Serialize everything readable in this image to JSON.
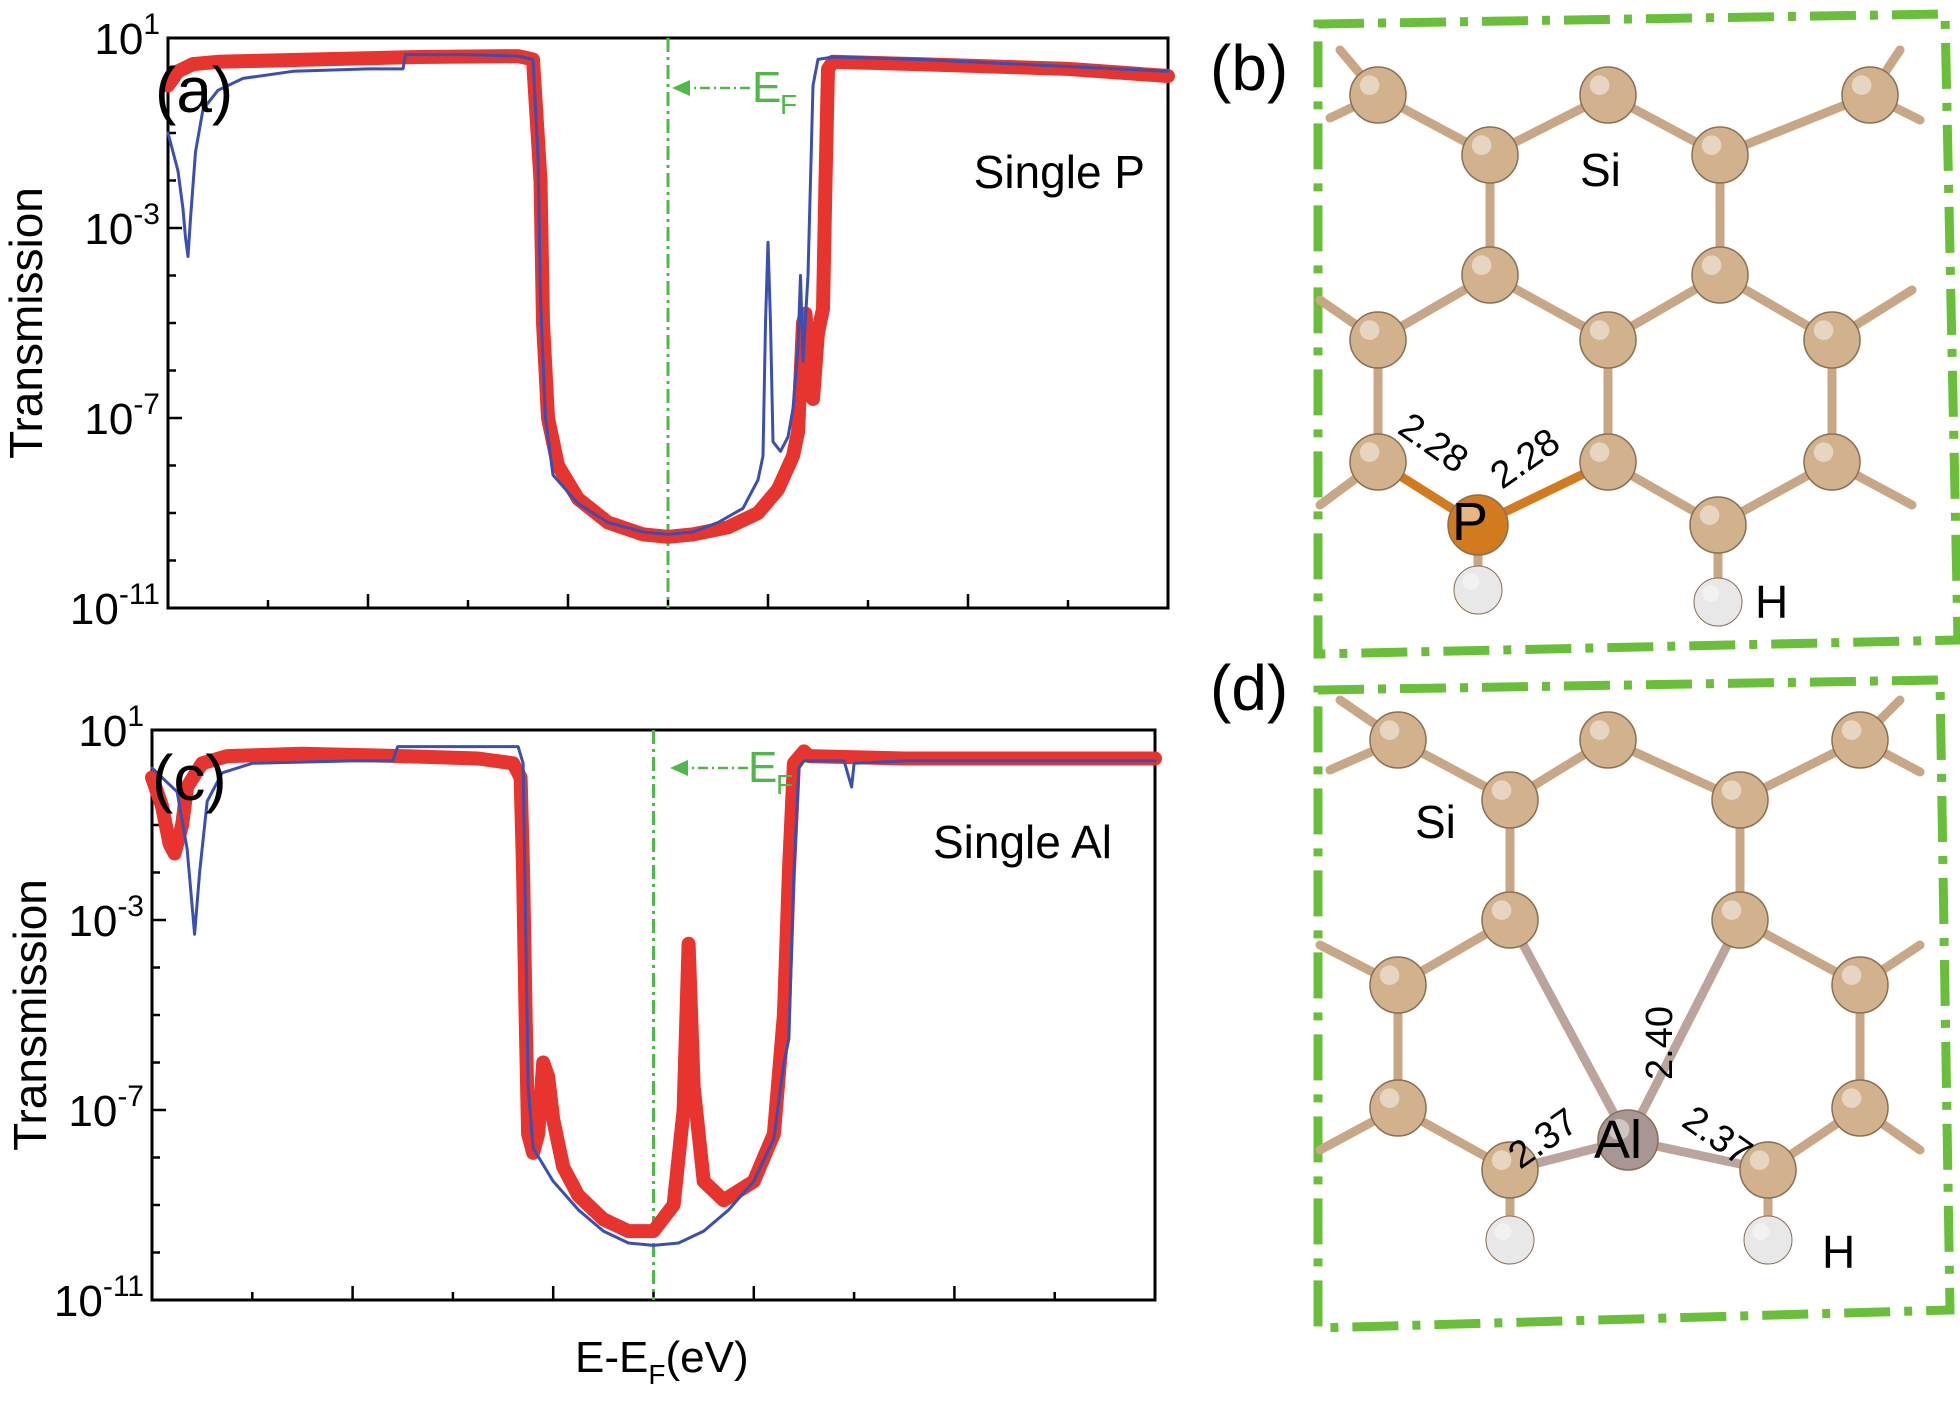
{
  "chart_data": [
    {
      "panel_label": "(a)",
      "type": "line",
      "annotation": "Single P",
      "ef_label": "E",
      "ef_sub": "F",
      "ylabel": "Transmission",
      "xlabel": "",
      "yscale": "log",
      "ylim_exp": [
        -11,
        1
      ],
      "xlim": [
        -1,
        1
      ],
      "yticks": [
        {
          "base": "10",
          "exp": "1",
          "value": 1
        },
        {
          "base": "10",
          "exp": "-3",
          "value": -3
        },
        {
          "base": "10",
          "exp": "-7",
          "value": -7
        },
        {
          "base": "10",
          "exp": "-11",
          "value": -11
        }
      ],
      "series": [
        {
          "color": "#e8342e",
          "width": 14,
          "points": [
            [
              -1.0,
              0.0
            ],
            [
              -0.98,
              0.3
            ],
            [
              -0.95,
              0.45
            ],
            [
              -0.9,
              0.5
            ],
            [
              -0.7,
              0.55
            ],
            [
              -0.5,
              0.6
            ],
            [
              -0.3,
              0.62
            ],
            [
              -0.27,
              0.55
            ],
            [
              -0.255,
              -2.0
            ],
            [
              -0.25,
              -5.0
            ],
            [
              -0.24,
              -7.0
            ],
            [
              -0.22,
              -8.0
            ],
            [
              -0.18,
              -8.7
            ],
            [
              -0.12,
              -9.2
            ],
            [
              -0.05,
              -9.45
            ],
            [
              0.0,
              -9.5
            ],
            [
              0.05,
              -9.45
            ],
            [
              0.12,
              -9.3
            ],
            [
              0.18,
              -9.0
            ],
            [
              0.22,
              -8.5
            ],
            [
              0.25,
              -7.8
            ],
            [
              0.26,
              -7.3
            ],
            [
              0.27,
              -5.0
            ],
            [
              0.275,
              -4.8
            ],
            [
              0.28,
              -5.5
            ],
            [
              0.27,
              -6.3
            ],
            [
              0.29,
              -6.6
            ],
            [
              0.3,
              -5.2
            ],
            [
              0.31,
              -4.7
            ],
            [
              0.315,
              -2.0
            ],
            [
              0.32,
              0.35
            ],
            [
              0.33,
              0.5
            ],
            [
              0.5,
              0.45
            ],
            [
              0.8,
              0.35
            ],
            [
              1.0,
              0.2
            ]
          ]
        },
        {
          "color": "#3a4fb0",
          "width": 3,
          "points": [
            [
              -1.0,
              -1.0
            ],
            [
              -0.98,
              -1.8
            ],
            [
              -0.97,
              -2.6
            ],
            [
              -0.965,
              -3.2
            ],
            [
              -0.96,
              -3.6
            ],
            [
              -0.955,
              -2.8
            ],
            [
              -0.945,
              -1.4
            ],
            [
              -0.93,
              -0.5
            ],
            [
              -0.9,
              -0.1
            ],
            [
              -0.85,
              0.15
            ],
            [
              -0.75,
              0.3
            ],
            [
              -0.6,
              0.35
            ],
            [
              -0.53,
              0.35
            ],
            [
              -0.525,
              0.65
            ],
            [
              -0.4,
              0.65
            ],
            [
              -0.3,
              0.62
            ],
            [
              -0.27,
              0.55
            ],
            [
              -0.26,
              -1.5
            ],
            [
              -0.255,
              -4.5
            ],
            [
              -0.245,
              -7.0
            ],
            [
              -0.23,
              -8.2
            ],
            [
              -0.18,
              -8.8
            ],
            [
              -0.12,
              -9.2
            ],
            [
              -0.05,
              -9.4
            ],
            [
              0.0,
              -9.45
            ],
            [
              0.05,
              -9.4
            ],
            [
              0.1,
              -9.2
            ],
            [
              0.15,
              -8.9
            ],
            [
              0.18,
              -8.3
            ],
            [
              0.19,
              -7.8
            ],
            [
              0.195,
              -5.0
            ],
            [
              0.2,
              -3.3
            ],
            [
              0.205,
              -5.0
            ],
            [
              0.21,
              -7.5
            ],
            [
              0.225,
              -7.7
            ],
            [
              0.24,
              -7.4
            ],
            [
              0.25,
              -6.8
            ],
            [
              0.26,
              -5.5
            ],
            [
              0.265,
              -4.0
            ],
            [
              0.27,
              -5.8
            ],
            [
              0.28,
              -4.0
            ],
            [
              0.29,
              0.0
            ],
            [
              0.3,
              0.55
            ],
            [
              0.33,
              0.6
            ],
            [
              0.5,
              0.55
            ],
            [
              0.8,
              0.4
            ],
            [
              1.0,
              0.3
            ]
          ]
        }
      ]
    },
    {
      "panel_label": "(c)",
      "type": "line",
      "annotation": "Single Al",
      "ef_label": "E",
      "ef_sub": "F",
      "ylabel": "Transmission",
      "xlabel_main": "E-E",
      "xlabel_sub": "F",
      "xlabel_unit": "(eV)",
      "yscale": "log",
      "ylim_exp": [
        -11,
        1
      ],
      "xlim": [
        -1,
        1
      ],
      "yticks": [
        {
          "base": "10",
          "exp": "1",
          "value": 1
        },
        {
          "base": "10",
          "exp": "-3",
          "value": -3
        },
        {
          "base": "10",
          "exp": "-7",
          "value": -7
        },
        {
          "base": "10",
          "exp": "-11",
          "value": -11
        }
      ],
      "series": [
        {
          "color": "#e8342e",
          "width": 14,
          "points": [
            [
              -1.0,
              0.0
            ],
            [
              -0.98,
              -0.6
            ],
            [
              -0.965,
              -1.4
            ],
            [
              -0.955,
              -1.6
            ],
            [
              -0.94,
              -1.0
            ],
            [
              -0.93,
              -0.2
            ],
            [
              -0.9,
              0.3
            ],
            [
              -0.85,
              0.45
            ],
            [
              -0.7,
              0.5
            ],
            [
              -0.5,
              0.45
            ],
            [
              -0.35,
              0.4
            ],
            [
              -0.28,
              0.3
            ],
            [
              -0.265,
              0.0
            ],
            [
              -0.26,
              -2.0
            ],
            [
              -0.255,
              -5.0
            ],
            [
              -0.25,
              -7.5
            ],
            [
              -0.24,
              -7.9
            ],
            [
              -0.23,
              -7.5
            ],
            [
              -0.22,
              -6.0
            ],
            [
              -0.21,
              -6.3
            ],
            [
              -0.2,
              -7.2
            ],
            [
              -0.18,
              -8.2
            ],
            [
              -0.15,
              -8.8
            ],
            [
              -0.1,
              -9.3
            ],
            [
              -0.05,
              -9.55
            ],
            [
              0.0,
              -9.55
            ],
            [
              0.04,
              -9.0
            ],
            [
              0.06,
              -7.0
            ],
            [
              0.07,
              -3.5
            ],
            [
              0.08,
              -6.5
            ],
            [
              0.1,
              -8.5
            ],
            [
              0.14,
              -8.9
            ],
            [
              0.2,
              -8.5
            ],
            [
              0.24,
              -7.5
            ],
            [
              0.26,
              -5.0
            ],
            [
              0.27,
              -2.0
            ],
            [
              0.28,
              0.3
            ],
            [
              0.3,
              0.55
            ],
            [
              0.31,
              0.45
            ],
            [
              0.5,
              0.4
            ],
            [
              0.8,
              0.4
            ],
            [
              1.0,
              0.4
            ]
          ]
        },
        {
          "color": "#3a4fb0",
          "width": 3,
          "points": [
            [
              -1.0,
              0.2
            ],
            [
              -0.95,
              -0.3
            ],
            [
              -0.93,
              -1.5
            ],
            [
              -0.915,
              -3.3
            ],
            [
              -0.905,
              -2.0
            ],
            [
              -0.89,
              -0.5
            ],
            [
              -0.86,
              0.1
            ],
            [
              -0.8,
              0.3
            ],
            [
              -0.6,
              0.35
            ],
            [
              -0.52,
              0.35
            ],
            [
              -0.51,
              0.65
            ],
            [
              -0.27,
              0.65
            ],
            [
              -0.26,
              0.3
            ],
            [
              -0.255,
              -3.0
            ],
            [
              -0.25,
              -6.5
            ],
            [
              -0.24,
              -7.8
            ],
            [
              -0.2,
              -8.5
            ],
            [
              -0.15,
              -9.1
            ],
            [
              -0.1,
              -9.55
            ],
            [
              -0.05,
              -9.8
            ],
            [
              0.0,
              -9.85
            ],
            [
              0.05,
              -9.8
            ],
            [
              0.1,
              -9.55
            ],
            [
              0.15,
              -9.1
            ],
            [
              0.2,
              -8.5
            ],
            [
              0.24,
              -7.6
            ],
            [
              0.26,
              -6.0
            ],
            [
              0.27,
              -5.5
            ],
            [
              0.28,
              -2.0
            ],
            [
              0.29,
              0.2
            ],
            [
              0.3,
              0.35
            ],
            [
              0.38,
              0.35
            ],
            [
              0.395,
              -0.2
            ],
            [
              0.4,
              0.3
            ],
            [
              0.5,
              0.35
            ],
            [
              1.0,
              0.35
            ]
          ]
        }
      ]
    }
  ],
  "structures": [
    {
      "panel_label": "(b)",
      "labels": {
        "si": "Si",
        "dopant": "P",
        "h": "H",
        "bond1": "2.28",
        "bond2": "2.28"
      },
      "colors": {
        "si": "#d2b28c",
        "dopant": "#d27a1e",
        "h": "#e8e8e8",
        "bond": "#c8a787",
        "frame": "#6abf3a"
      }
    },
    {
      "panel_label": "(d)",
      "labels": {
        "si": "Si",
        "dopant": "Al",
        "h": "H",
        "bond1": "2.37",
        "bond2": "2.40",
        "bond3": "2.37"
      },
      "colors": {
        "si": "#d2b28c",
        "dopant": "#a89694",
        "h": "#e8e8e8",
        "bond": "#c8a787",
        "frame": "#6abf3a"
      }
    }
  ]
}
